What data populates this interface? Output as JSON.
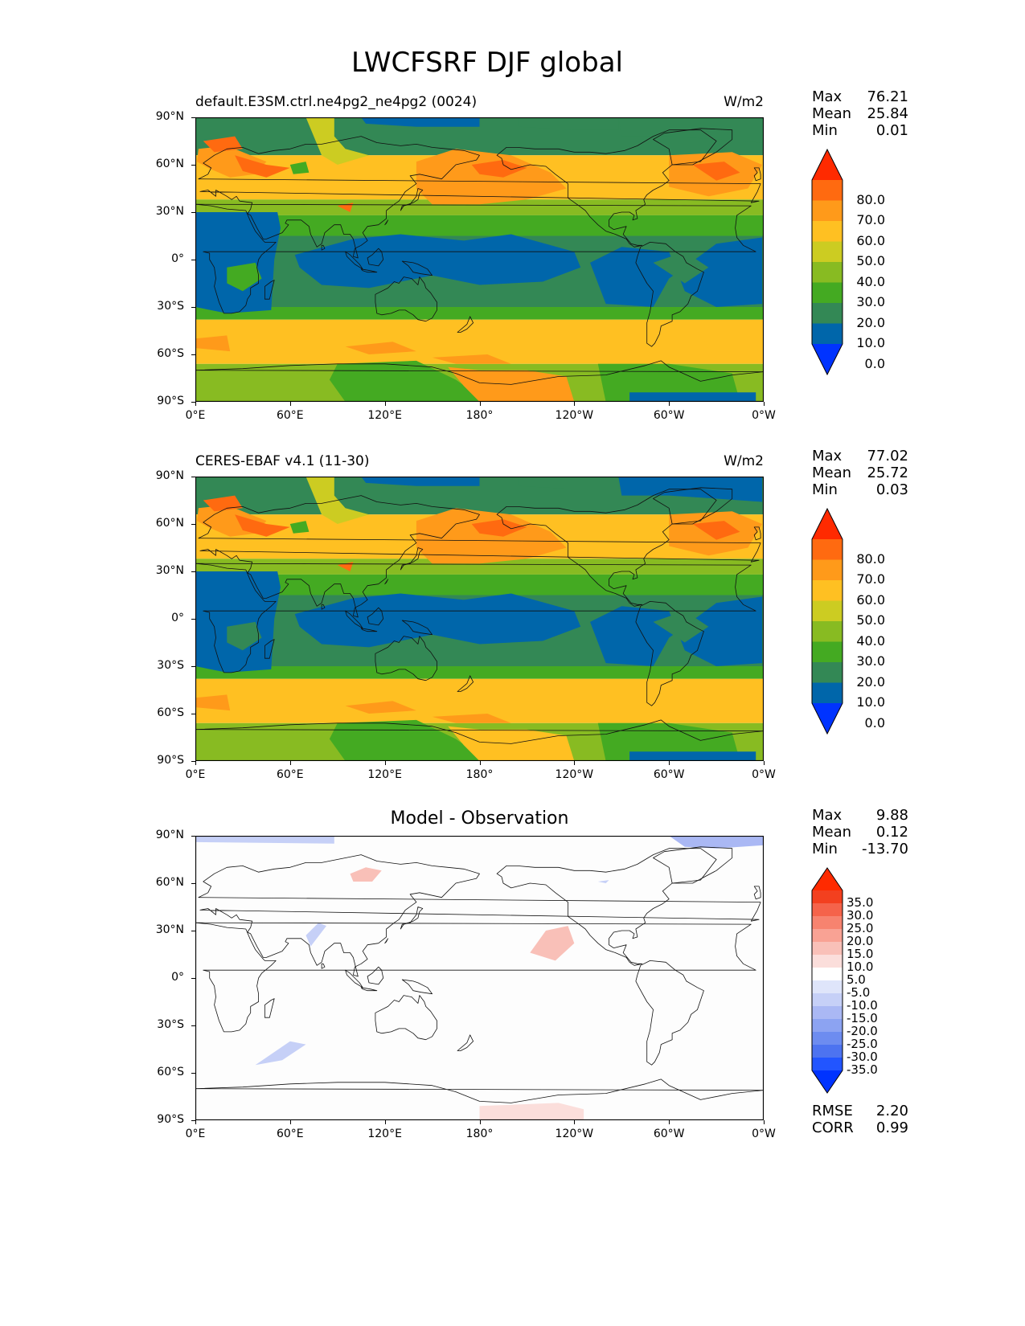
{
  "figure_title": "LWCFSRF DJF global",
  "lat_ticks": [
    "90°N",
    "60°N",
    "30°N",
    "0°",
    "30°S",
    "60°S",
    "90°S"
  ],
  "lon_ticks": [
    "0°E",
    "60°E",
    "120°E",
    "180°",
    "120°W",
    "60°W",
    "0°W"
  ],
  "panels": [
    {
      "left_title": "default.E3SM.ctrl.ne4pg2_ne4pg2 (0024)",
      "units": "W/m2",
      "center_title": "",
      "stats": [
        {
          "label": "Max",
          "value": "76.21"
        },
        {
          "label": "Mean",
          "value": "25.84"
        },
        {
          "label": "Min",
          "value": "0.01"
        }
      ],
      "colorbar_labels": [
        "80.0",
        "70.0",
        "60.0",
        "50.0",
        "40.0",
        "30.0",
        "20.0",
        "10.0",
        "0.0"
      ],
      "extra_stats": []
    },
    {
      "left_title": "CERES-EBAF v4.1 (11-30)",
      "units": "W/m2",
      "center_title": "",
      "stats": [
        {
          "label": "Max",
          "value": "77.02"
        },
        {
          "label": "Mean",
          "value": "25.72"
        },
        {
          "label": "Min",
          "value": "0.03"
        }
      ],
      "colorbar_labels": [
        "80.0",
        "70.0",
        "60.0",
        "50.0",
        "40.0",
        "30.0",
        "20.0",
        "10.0",
        "0.0"
      ],
      "extra_stats": []
    },
    {
      "left_title": "",
      "units": "",
      "center_title": "Model - Observation",
      "stats": [
        {
          "label": "Max",
          "value": "9.88"
        },
        {
          "label": "Mean",
          "value": "0.12"
        },
        {
          "label": "Min",
          "value": "-13.70"
        }
      ],
      "colorbar_labels": [
        "35.0",
        "30.0",
        "25.0",
        "20.0",
        "15.0",
        "10.0",
        "5.0",
        "-5.0",
        "-10.0",
        "-15.0",
        "-20.0",
        "-25.0",
        "-30.0",
        "-35.0"
      ],
      "extra_stats": [
        {
          "label": "RMSE",
          "value": "2.20"
        },
        {
          "label": "CORR",
          "value": "0.99"
        }
      ]
    }
  ],
  "colors": {
    "sequential_colorbar": [
      "#0033ff",
      "#0066aa",
      "#338855",
      "#44aa22",
      "#88bb22",
      "#cccc22",
      "#ffc022",
      "#ff9a1a",
      "#ff6a10",
      "#ff2a00"
    ],
    "diverging_colorbar": [
      "#0033ff",
      "#2255ff",
      "#4d73f0",
      "#6d8cf0",
      "#8ca3f2",
      "#aab8f4",
      "#c6d0f7",
      "#dfe5fa",
      "#ffffff",
      "#fbdedb",
      "#f9c0b8",
      "#f9a294",
      "#f7836f",
      "#f5634a",
      "#f3401f",
      "#ff2a00"
    ]
  }
}
